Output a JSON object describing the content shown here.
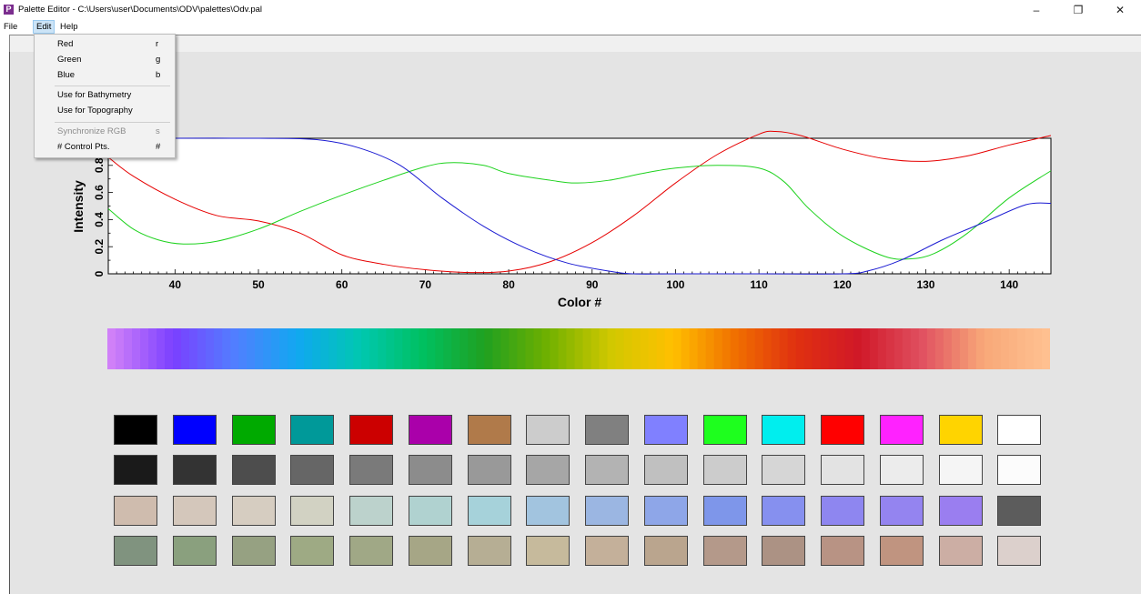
{
  "window": {
    "app_icon_letter": "P",
    "title": "Palette Editor - C:\\Users\\user\\Documents\\ODV\\palettes\\Odv.pal",
    "minimize_glyph": "–",
    "restore_glyph": "❐",
    "close_glyph": "✕"
  },
  "menubar": {
    "file": "File",
    "edit": "Edit",
    "help": "Help"
  },
  "edit_menu": {
    "items": [
      {
        "label": "Red",
        "shortcut": "r",
        "enabled": true
      },
      {
        "label": "Green",
        "shortcut": "g",
        "enabled": true
      },
      {
        "label": "Blue",
        "shortcut": "b",
        "enabled": true
      },
      {
        "label": "Use for Bathymetry",
        "shortcut": "",
        "enabled": true
      },
      {
        "label": "Use for Topography",
        "shortcut": "",
        "enabled": true
      },
      {
        "label": "Synchronize RGB",
        "shortcut": "s",
        "enabled": false
      },
      {
        "label": "# Control Pts.",
        "shortcut": "#",
        "enabled": true
      }
    ]
  },
  "chart_data": {
    "type": "line",
    "xlabel": "Color #",
    "ylabel": "Intensity",
    "xlim": [
      32,
      145
    ],
    "ylim": [
      0,
      1
    ],
    "x_ticks": [
      40,
      50,
      60,
      70,
      80,
      90,
      100,
      110,
      120,
      130,
      140
    ],
    "y_ticks": [
      0,
      0.2,
      0.4,
      0.6,
      0.8
    ],
    "grid": false,
    "series": [
      {
        "color": "#e60000",
        "x": [
          32,
          35,
          40,
          45,
          50,
          55,
          60,
          65,
          70,
          75,
          80,
          85,
          90,
          95,
          100,
          105,
          110,
          112,
          115,
          120,
          125,
          130,
          135,
          140,
          145
        ],
        "y": [
          0.86,
          0.72,
          0.55,
          0.43,
          0.39,
          0.3,
          0.14,
          0.07,
          0.03,
          0.01,
          0.02,
          0.09,
          0.23,
          0.43,
          0.67,
          0.88,
          1.03,
          1.05,
          1.02,
          0.92,
          0.85,
          0.83,
          0.87,
          0.95,
          1.02
        ]
      },
      {
        "color": "#1ed21e",
        "x": [
          32,
          35,
          38,
          41,
          45,
          50,
          55,
          60,
          65,
          70,
          73,
          77,
          80,
          85,
          88,
          92,
          96,
          100,
          105,
          110,
          113,
          116,
          120,
          125,
          128,
          131,
          135,
          140,
          145
        ],
        "y": [
          0.48,
          0.33,
          0.25,
          0.22,
          0.24,
          0.33,
          0.46,
          0.58,
          0.69,
          0.79,
          0.82,
          0.8,
          0.74,
          0.69,
          0.67,
          0.69,
          0.74,
          0.78,
          0.8,
          0.78,
          0.68,
          0.48,
          0.28,
          0.13,
          0.11,
          0.15,
          0.3,
          0.56,
          0.76
        ]
      },
      {
        "color": "#1a1ad2",
        "x": [
          32,
          40,
          50,
          57,
          62,
          67,
          72,
          77,
          82,
          87,
          92,
          95,
          100,
          110,
          120,
          123,
          127,
          132,
          137,
          142,
          145
        ],
        "y": [
          1,
          1,
          1,
          0.99,
          0.93,
          0.8,
          0.56,
          0.35,
          0.19,
          0.08,
          0.02,
          0,
          0,
          0,
          0,
          0.02,
          0.1,
          0.25,
          0.38,
          0.51,
          0.52
        ]
      }
    ]
  },
  "gradient": {
    "stops": [
      "#d080f8",
      "#7a40ff",
      "#5080ff",
      "#10a8f0",
      "#00c8b0",
      "#00c060",
      "#20a020",
      "#70b000",
      "#d0c800",
      "#ffc000",
      "#f07000",
      "#e03010",
      "#d01828",
      "#e05060",
      "#f8a878",
      "#ffc090"
    ]
  },
  "swatches": [
    [
      "#000000",
      "#0000ff",
      "#00aa00",
      "#009999",
      "#cc0000",
      "#aa00aa",
      "#b07a4a",
      "#cccccc",
      "#808080",
      "#8080ff",
      "#1eff1e",
      "#00eeee",
      "#ff0000",
      "#ff22ff",
      "#ffd400",
      "#ffffff"
    ],
    [
      "#1a1a1a",
      "#333333",
      "#4d4d4d",
      "#666666",
      "#7a7a7a",
      "#8c8c8c",
      "#999999",
      "#a6a6a6",
      "#b3b3b3",
      "#c0c0c0",
      "#cccccc",
      "#d6d6d6",
      "#e3e3e3",
      "#ececec",
      "#f5f5f5",
      "#fcfcfc"
    ],
    [
      "#cfbcae",
      "#d4c7bb",
      "#d6cdc1",
      "#d2d2c3",
      "#bcd2cc",
      "#b0d2d0",
      "#a6d2da",
      "#a2c4df",
      "#9bb6e2",
      "#8ea6e8",
      "#7e96ea",
      "#8690ef",
      "#8e86f0",
      "#9484f0",
      "#9a7ef0",
      "#5c5c5c"
    ],
    [
      "#80937f",
      "#8aa07e",
      "#96a182",
      "#9eaa84",
      "#a0a886",
      "#a6a686",
      "#b6ae94",
      "#c6ba9c",
      "#c4b09a",
      "#baa58e",
      "#b4998a",
      "#ac9284",
      "#b89384",
      "#c09480",
      "#ccaea4",
      "#dcd0cc"
    ]
  ]
}
